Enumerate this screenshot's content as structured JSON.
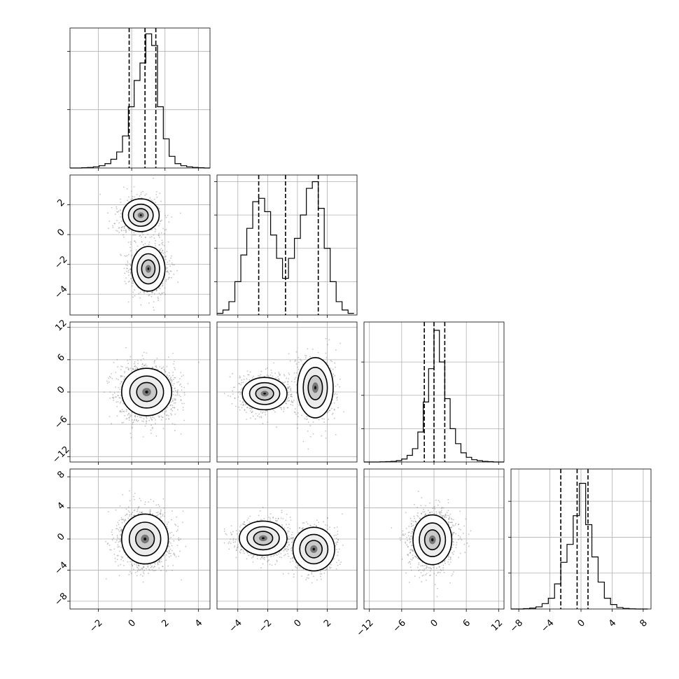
{
  "chart_data": {
    "type": "corner",
    "grid": true,
    "parameters": [
      {
        "id": "p0",
        "range": [
          -3.7,
          4.7
        ],
        "ticks": [
          -2,
          0,
          2,
          4
        ],
        "tick_labels": [
          "−2",
          "0",
          "2",
          "4"
        ],
        "hist": {
          "bin_edges": [
            -3.7,
            -3.35,
            -3.0,
            -2.65,
            -2.3,
            -1.95,
            -1.6,
            -1.25,
            -0.9,
            -0.55,
            -0.2,
            0.15,
            0.5,
            0.85,
            1.2,
            1.55,
            1.9,
            2.25,
            2.6,
            2.95,
            3.3,
            3.65,
            4.0,
            4.35,
            4.7
          ],
          "counts": [
            0,
            0,
            1,
            2,
            4,
            8,
            15,
            30,
            55,
            110,
            210,
            300,
            360,
            460,
            420,
            210,
            100,
            40,
            15,
            8,
            4,
            2,
            1,
            0
          ],
          "ymax": 480,
          "ytick_values": [
            200,
            400
          ]
        },
        "quantiles": [
          -0.15,
          0.8,
          1.45
        ]
      },
      {
        "id": "p1",
        "range": [
          -5.4,
          4.0
        ],
        "ticks": [
          -4,
          -2,
          0,
          2
        ],
        "tick_labels": [
          "−4",
          "−2",
          "0",
          "2"
        ],
        "hist": {
          "bin_edges": [
            -5.4,
            -5.0,
            -4.6,
            -4.2,
            -3.8,
            -3.4,
            -3.0,
            -2.6,
            -2.2,
            -1.8,
            -1.4,
            -1.0,
            -0.6,
            -0.2,
            0.2,
            0.6,
            1.0,
            1.4,
            1.8,
            2.2,
            2.6,
            3.0,
            3.4,
            3.8
          ],
          "counts": [
            5,
            15,
            40,
            100,
            180,
            260,
            340,
            350,
            310,
            240,
            170,
            110,
            170,
            230,
            300,
            380,
            400,
            320,
            200,
            100,
            40,
            15,
            5
          ],
          "ymax": 420,
          "ytick_values": [
            100,
            200,
            300,
            400
          ]
        },
        "quantiles": [
          -2.6,
          -0.8,
          1.4
        ]
      },
      {
        "id": "p2",
        "range": [
          -13,
          13
        ],
        "ticks": [
          -12,
          -6,
          0,
          6,
          12
        ],
        "tick_labels": [
          "−12",
          "−6",
          "0",
          "6",
          "12"
        ],
        "hist": {
          "bin_edges": [
            -13,
            -12,
            -11,
            -10,
            -9,
            -8,
            -7,
            -6,
            -5,
            -4,
            -3,
            -2,
            -1,
            0,
            1,
            2,
            3,
            4,
            5,
            6,
            7,
            8,
            9,
            10,
            11,
            12,
            13
          ],
          "counts": [
            0,
            0,
            0,
            1,
            2,
            4,
            8,
            18,
            40,
            80,
            180,
            360,
            560,
            790,
            600,
            380,
            200,
            110,
            55,
            28,
            14,
            8,
            4,
            2,
            0,
            0
          ],
          "ymax": 840,
          "ytick_values": [
            200,
            400,
            600
          ]
        },
        "quantiles": [
          -1.8,
          0.0,
          2.0
        ]
      },
      {
        "id": "p3",
        "range": [
          -9,
          9
        ],
        "ticks": [
          -8,
          -4,
          0,
          4,
          8
        ],
        "tick_labels": [
          "−8",
          "−4",
          "0",
          "4",
          "8"
        ],
        "hist": {
          "bin_edges": [
            -9,
            -8.2,
            -7.4,
            -6.6,
            -5.8,
            -5.0,
            -4.2,
            -3.4,
            -2.6,
            -1.8,
            -1.0,
            -0.2,
            0.6,
            1.4,
            2.2,
            3.0,
            3.8,
            4.6,
            5.4,
            6.2,
            7.0,
            7.8,
            8.6
          ],
          "counts": [
            0,
            0,
            2,
            5,
            12,
            30,
            60,
            140,
            260,
            360,
            520,
            700,
            470,
            290,
            150,
            60,
            25,
            8,
            3,
            1,
            0,
            0
          ],
          "ymax": 780,
          "ytick_values": [
            200,
            400,
            600
          ]
        },
        "quantiles": [
          -2.6,
          -0.5,
          0.9
        ]
      }
    ],
    "pairs": [
      {
        "x": 0,
        "y": 1,
        "blobs": [
          {
            "cx": 0.55,
            "cy": 1.3,
            "sx": 0.55,
            "sy": 0.55,
            "w": 1
          },
          {
            "cx": 1.0,
            "cy": -2.3,
            "sx": 0.5,
            "sy": 0.75,
            "w": 1.2
          }
        ]
      },
      {
        "x": 0,
        "y": 2,
        "blobs": [
          {
            "cx": 0.9,
            "cy": 0.0,
            "sx": 0.75,
            "sy": 2.2,
            "w": 1
          }
        ]
      },
      {
        "x": 1,
        "y": 2,
        "blobs": [
          {
            "cx": -2.2,
            "cy": -0.3,
            "sx": 0.75,
            "sy": 1.5,
            "w": 1.2
          },
          {
            "cx": 1.2,
            "cy": 0.8,
            "sx": 0.6,
            "sy": 2.8,
            "w": 0.8
          }
        ]
      },
      {
        "x": 0,
        "y": 3,
        "blobs": [
          {
            "cx": 0.8,
            "cy": 0.0,
            "sx": 0.7,
            "sy": 1.6,
            "w": 1
          }
        ]
      },
      {
        "x": 1,
        "y": 3,
        "blobs": [
          {
            "cx": -2.3,
            "cy": 0.1,
            "sx": 0.8,
            "sy": 1.1,
            "w": 1.2
          },
          {
            "cx": 1.1,
            "cy": -1.3,
            "sx": 0.7,
            "sy": 1.4,
            "w": 0.9
          }
        ]
      },
      {
        "x": 2,
        "y": 3,
        "blobs": [
          {
            "cx": -0.3,
            "cy": -0.1,
            "sx": 1.8,
            "sy": 1.6,
            "w": 1
          }
        ]
      }
    ]
  }
}
